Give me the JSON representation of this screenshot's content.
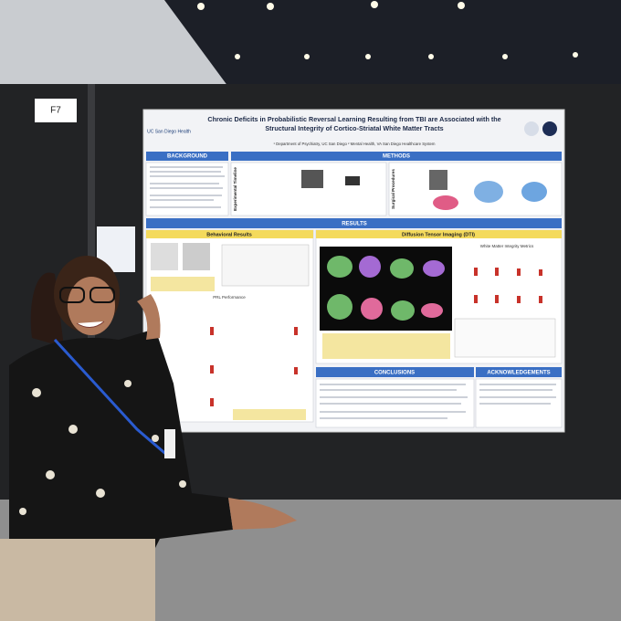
{
  "sign": "F7",
  "poster": {
    "institution": "UC San Diego Health",
    "title_lines": [
      "Chronic Deficits in Probabilistic Reversal Learning Resulting from TBI are Associated with the",
      "Structural Integrity of Cortico-Striatal White Matter Tracts"
    ],
    "affiliations": "¹ Department of Psychiatry, UC San Diego ² Mental Health, VA San Diego Healthcare System",
    "headers": {
      "background": "BACKGROUND",
      "methods": "METHODS",
      "results": "RESULTS",
      "conclusions": "CONCLUSIONS",
      "acknowledgements": "ACKNOWLEDGEMENTS"
    },
    "panels": {
      "timeline": "Experimental Timeline",
      "surgical": "Surgical Procedures",
      "behavioral": "Behavioral Results",
      "dti": "Diffusion Tensor Imaging (DTI)",
      "prl": "PRL Performance",
      "wm": "White Matter Integrity Metrics"
    }
  }
}
